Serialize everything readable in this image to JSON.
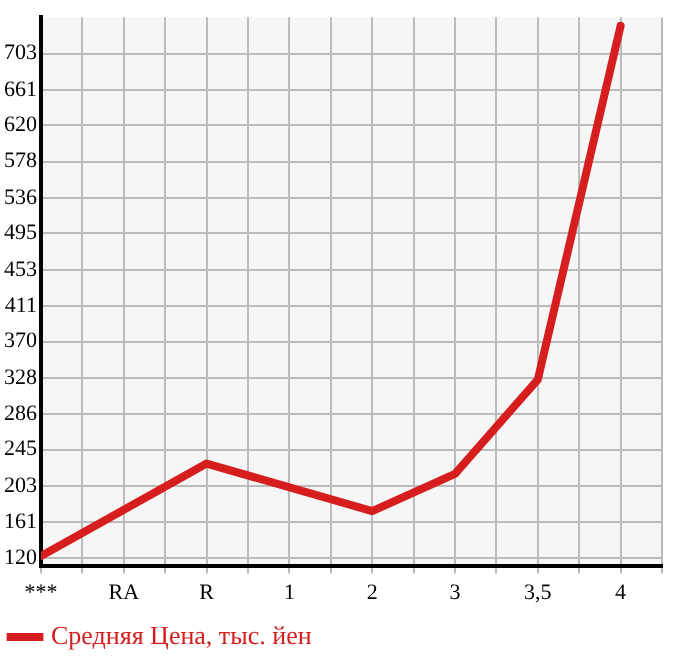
{
  "chart_data": {
    "type": "line",
    "categories": [
      "***",
      "RA",
      "R",
      "1",
      "2",
      "3",
      "3,5",
      "4"
    ],
    "series": [
      {
        "name": "Средняя Цена, тыс. йен",
        "color": "#d71e1e",
        "values": [
          122,
          null,
          229,
          null,
          174,
          217,
          326,
          735
        ]
      }
    ],
    "ylim": [
      111,
      745
    ],
    "yticks": [
      120,
      161,
      203,
      245,
      286,
      328,
      370,
      411,
      453,
      495,
      536,
      578,
      620,
      661,
      703
    ],
    "grid": true,
    "legend": "bottom left",
    "marker": "none",
    "line_style": "solid"
  }
}
